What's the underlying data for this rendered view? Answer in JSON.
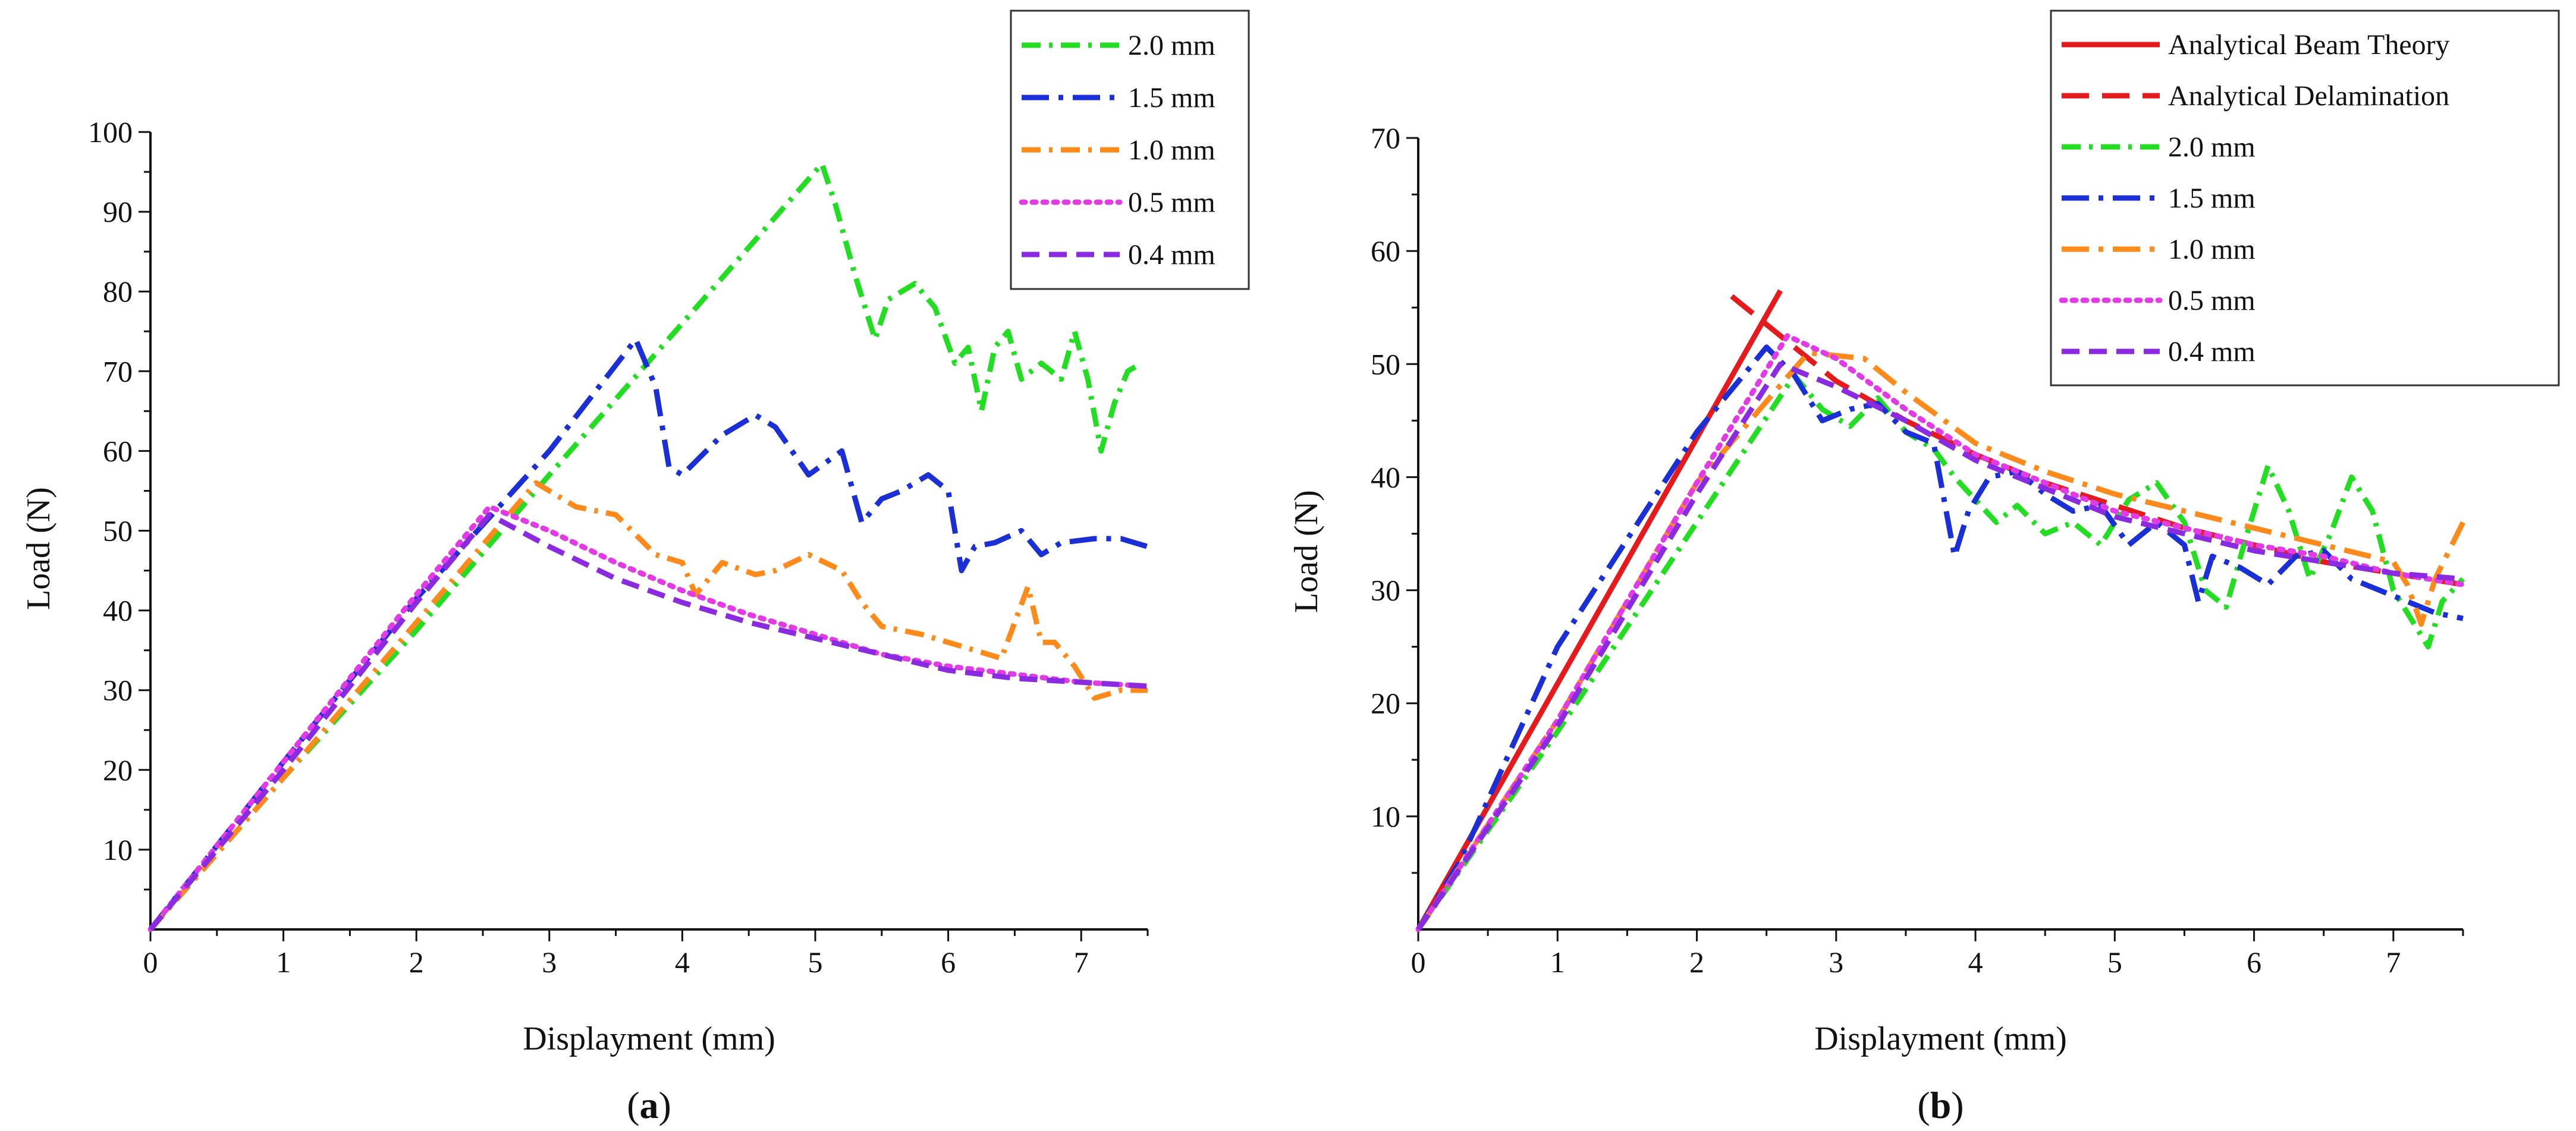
{
  "chart_data": [
    {
      "type": "line",
      "panel_label_open": "(",
      "panel_label_letter": "a",
      "panel_label_close": ")",
      "xlabel": "Displayment (mm)",
      "ylabel": "Load (N)",
      "xlim": [
        0,
        7.5
      ],
      "ylim": [
        0,
        100
      ],
      "xticks": [
        0,
        1,
        2,
        3,
        4,
        5,
        6,
        7
      ],
      "yticks": [
        10,
        20,
        30,
        40,
        50,
        60,
        70,
        80,
        90,
        100
      ],
      "grid": false,
      "legend_position": "top-right",
      "series": [
        {
          "name": "2.0 mm",
          "color": "#22dd22",
          "dash": "dashdot",
          "x": [
            0,
            1,
            2,
            3,
            4,
            5.05,
            5.15,
            5.3,
            5.45,
            5.55,
            5.75,
            5.9,
            6.05,
            6.15,
            6.25,
            6.35,
            6.45,
            6.55,
            6.7,
            6.85,
            6.95,
            7.05,
            7.15,
            7.25,
            7.35,
            7.45
          ],
          "y": [
            0,
            19,
            37.5,
            57,
            76,
            96,
            91,
            82,
            74,
            79,
            81,
            78,
            71,
            73,
            65,
            73,
            75,
            69,
            71,
            69,
            75,
            69,
            60,
            66,
            70,
            71
          ]
        },
        {
          "name": "1.5 mm",
          "color": "#1a2fd6",
          "dash": "longdashdot",
          "x": [
            0,
            1,
            2,
            3,
            3.65,
            3.8,
            3.9,
            4.0,
            4.3,
            4.55,
            4.7,
            4.95,
            5.2,
            5.35,
            5.5,
            5.65,
            5.85,
            6.0,
            6.1,
            6.2,
            6.35,
            6.55,
            6.7,
            6.85,
            7.1,
            7.3,
            7.5
          ],
          "y": [
            0,
            21,
            41.5,
            60,
            74,
            68,
            58,
            57,
            62,
            64.5,
            63,
            57,
            60,
            51,
            54,
            55,
            57,
            55,
            45,
            48,
            48.5,
            50,
            47,
            48.5,
            49,
            49,
            48
          ]
        },
        {
          "name": "1.0 mm",
          "color": "#ff8a1c",
          "dash": "dashdot",
          "x": [
            0,
            1,
            2,
            2.9,
            3.2,
            3.5,
            3.8,
            4.0,
            4.1,
            4.3,
            4.55,
            4.7,
            4.95,
            5.2,
            5.35,
            5.5,
            5.8,
            6.1,
            6.4,
            6.6,
            6.7,
            6.8,
            6.95,
            7.1,
            7.3,
            7.5
          ],
          "y": [
            0,
            19,
            38.5,
            56,
            53,
            52,
            47,
            46,
            42,
            46,
            44.5,
            45,
            47,
            45,
            41,
            38,
            37,
            35.5,
            34,
            43,
            36,
            36,
            33,
            29,
            30,
            30
          ]
        },
        {
          "name": "0.5 mm",
          "color": "#e23be6",
          "dash": "dotted",
          "x": [
            0,
            1,
            2,
            2.55,
            3,
            3.5,
            4,
            4.5,
            5,
            5.5,
            6,
            6.5,
            7,
            7.5
          ],
          "y": [
            0,
            21,
            42,
            53,
            50,
            46,
            42.5,
            39.5,
            37,
            34.5,
            33,
            32,
            31,
            30.5
          ]
        },
        {
          "name": "0.4 mm",
          "color": "#8a2be2",
          "dash": "dashed",
          "x": [
            0,
            1,
            2,
            2.55,
            3,
            3.5,
            4,
            4.5,
            5,
            5.5,
            6,
            6.5,
            7,
            7.5
          ],
          "y": [
            0,
            20,
            41,
            52,
            48,
            44,
            41,
            38.5,
            36.5,
            34.5,
            32.5,
            31.5,
            31,
            30.5
          ]
        }
      ]
    },
    {
      "type": "line",
      "panel_label_open": "(",
      "panel_label_letter": "b",
      "panel_label_close": ")",
      "xlabel": "Displayment (mm)",
      "ylabel": "Load (N)",
      "xlim": [
        0,
        7.5
      ],
      "ylim": [
        0,
        70
      ],
      "xticks": [
        0,
        1,
        2,
        3,
        4,
        5,
        6,
        7
      ],
      "yticks": [
        10,
        20,
        30,
        40,
        50,
        60,
        70
      ],
      "grid": false,
      "legend_position": "top-right",
      "series": [
        {
          "name": "Analytical Beam Theory",
          "color": "#e41a1c",
          "dash": "solid",
          "x": [
            0,
            2.6
          ],
          "y": [
            0,
            56.5
          ]
        },
        {
          "name": "Analytical Delamination",
          "color": "#e41a1c",
          "dash": "longdash",
          "x": [
            2.25,
            2.5,
            3,
            3.5,
            4,
            4.5,
            5,
            5.5,
            6,
            6.5,
            7,
            7.5
          ],
          "y": [
            56,
            53.5,
            48.5,
            45,
            42,
            39.5,
            37.5,
            35.5,
            34,
            32.5,
            31.5,
            30.5
          ]
        },
        {
          "name": "2.0 mm",
          "color": "#22dd22",
          "dash": "dashdot",
          "x": [
            0,
            1,
            2,
            2.7,
            2.9,
            3.1,
            3.3,
            3.5,
            3.7,
            3.85,
            4.0,
            4.15,
            4.3,
            4.5,
            4.7,
            4.9,
            5.1,
            5.3,
            5.5,
            5.65,
            5.8,
            5.95,
            6.1,
            6.25,
            6.4,
            6.55,
            6.7,
            6.85,
            7.0,
            7.15,
            7.25,
            7.35,
            7.5
          ],
          "y": [
            0,
            17.5,
            36,
            49,
            46,
            44.5,
            47,
            44,
            42.5,
            40,
            38,
            36,
            37.5,
            35,
            36,
            34,
            38,
            39.5,
            36,
            30,
            28.5,
            35,
            41,
            37,
            31,
            35,
            40,
            37,
            30,
            27,
            25,
            29,
            31
          ]
        },
        {
          "name": "1.5 mm",
          "color": "#1a2fd6",
          "dash": "longdashdot",
          "x": [
            0,
            0.3,
            1,
            2,
            2.5,
            2.7,
            2.9,
            3.1,
            3.3,
            3.5,
            3.7,
            3.85,
            3.95,
            4.1,
            4.3,
            4.5,
            4.7,
            4.9,
            5.1,
            5.3,
            5.5,
            5.6,
            5.7,
            5.9,
            6.1,
            6.3,
            6.5,
            6.7,
            6.9,
            7.1,
            7.3,
            7.5
          ],
          "y": [
            0,
            6,
            25,
            44,
            51.5,
            49,
            45,
            46,
            46.5,
            44,
            43,
            33,
            37,
            40,
            40.5,
            38.5,
            37,
            37.5,
            34,
            36,
            34,
            29,
            33,
            32,
            30.5,
            33,
            33.5,
            31,
            30,
            29,
            28,
            27.5
          ]
        },
        {
          "name": "1.0 mm",
          "color": "#ff8a1c",
          "dash": "longdashdot",
          "x": [
            0,
            1,
            2,
            2.8,
            3.2,
            3.5,
            4,
            4.5,
            5,
            5.5,
            6,
            6.5,
            7,
            7.1,
            7.2,
            7.3,
            7.5
          ],
          "y": [
            0,
            18.5,
            39.5,
            51,
            50.5,
            47.5,
            43,
            40.5,
            38.5,
            37,
            35.5,
            34,
            32.5,
            30.5,
            27,
            31,
            36
          ]
        },
        {
          "name": "0.5 mm",
          "color": "#e23be6",
          "dash": "dotted",
          "x": [
            0,
            1,
            2,
            2.65,
            3,
            3.5,
            4,
            4.5,
            5,
            5.5,
            6,
            6.5,
            7,
            7.5
          ],
          "y": [
            0,
            18.5,
            39.5,
            52.5,
            50.5,
            46,
            42,
            39.5,
            37,
            35.5,
            34,
            33,
            31.5,
            30.5
          ]
        },
        {
          "name": "0.4 mm",
          "color": "#8a2be2",
          "dash": "dashed",
          "x": [
            0,
            1,
            2,
            2.6,
            3,
            3.5,
            4,
            4.5,
            5,
            5.5,
            6,
            6.5,
            7,
            7.5
          ],
          "y": [
            0,
            18,
            38.5,
            50,
            48,
            45,
            41.5,
            39,
            36.5,
            35,
            33.5,
            32.5,
            31.5,
            31
          ]
        }
      ]
    }
  ]
}
